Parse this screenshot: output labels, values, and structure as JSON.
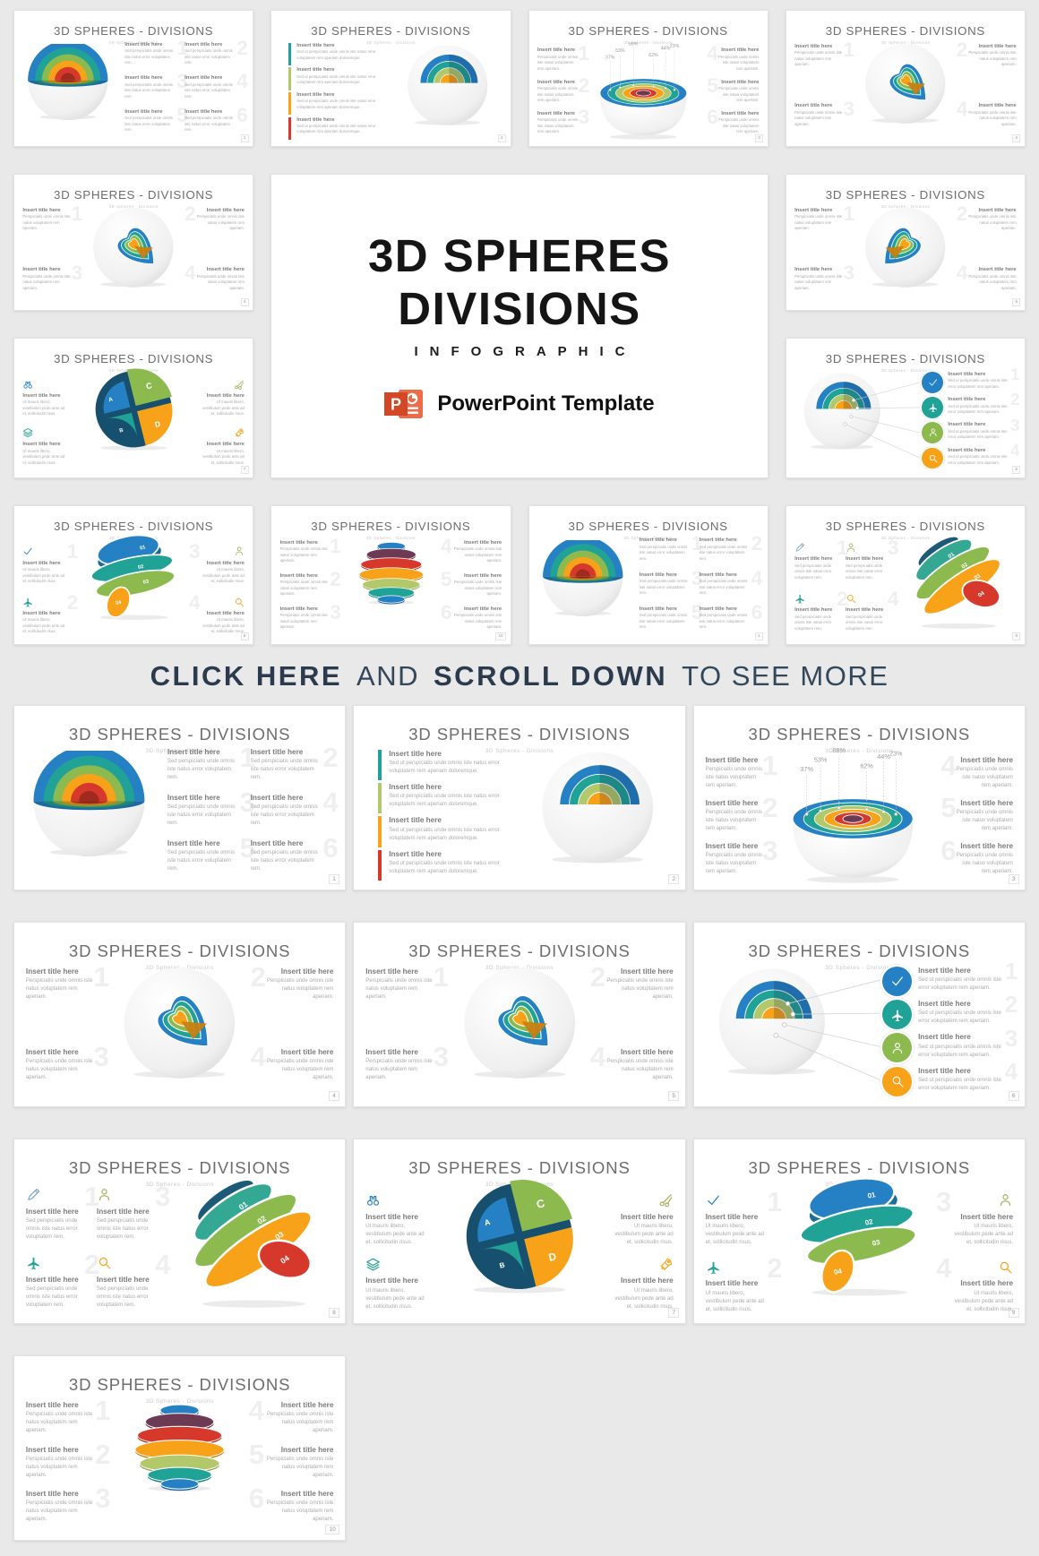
{
  "banner": {
    "bold1": "CLICK HERE",
    "mid": "AND",
    "bold2": "SCROLL DOWN",
    "tail": "TO SEE MORE"
  },
  "title_block": {
    "line1": "3D SPHERES",
    "line2": "DIVISIONS",
    "line3": "INFOGRAPHIC",
    "logo_letter": "P",
    "logo_text": "PowerPoint Template"
  },
  "slide": {
    "title": "3D SPHERES - DIVISIONS",
    "subtitle": "3D Spheres - Divisions",
    "item_title": "Insert title here",
    "body_a": "Sed perspiciatis unde omnis iste natus error voluptatem rem.",
    "body_b": "Sed ut perspiciatis unde omnis iste natus error voluptatem rem aperiam doloremque.",
    "body_c": "Perspiciatis unde omnis iste natus voluptatem rem aperiam.",
    "body_d": "Ut mauris libero, vestibulum pede ante ad et, sollicitudin risus.",
    "body_e": "Sed ut perspiciatis unde omnis iste error voluptatem rem aperiam."
  },
  "labels": {
    "ghost": [
      "1",
      "2",
      "3",
      "4",
      "5",
      "6"
    ],
    "bands": [
      "01",
      "02",
      "03",
      "04"
    ],
    "quarters": [
      "A",
      "B",
      "C",
      "D"
    ],
    "percents": [
      "37%",
      "53%",
      "88%",
      "62%",
      "44%",
      "23%"
    ]
  },
  "pages": {
    "cross": "1",
    "bars": "2",
    "percent": "3",
    "heart": "4",
    "heart2": "5",
    "callouts": "6",
    "abcd": "7",
    "bands_a": "8",
    "bands_b": "9",
    "pancakes": "10"
  },
  "colors": {
    "blue": "#2581c4",
    "teal": "#21a296",
    "green": "#8cba4f",
    "lime": "#b2c86a",
    "olive": "#a8ae5a",
    "orange": "#f7a219",
    "red": "#d6392b",
    "dark_red": "#a02a1e",
    "maroon": "#6d3a54",
    "navy": "#17506f",
    "navy2": "#1d5a78",
    "steel": "#7da7c4",
    "ppt_red": "#d24726",
    "ppt_light": "#ed6c47",
    "banner_text": "#2b3b4d",
    "page_bg": "#e9e9e9"
  }
}
